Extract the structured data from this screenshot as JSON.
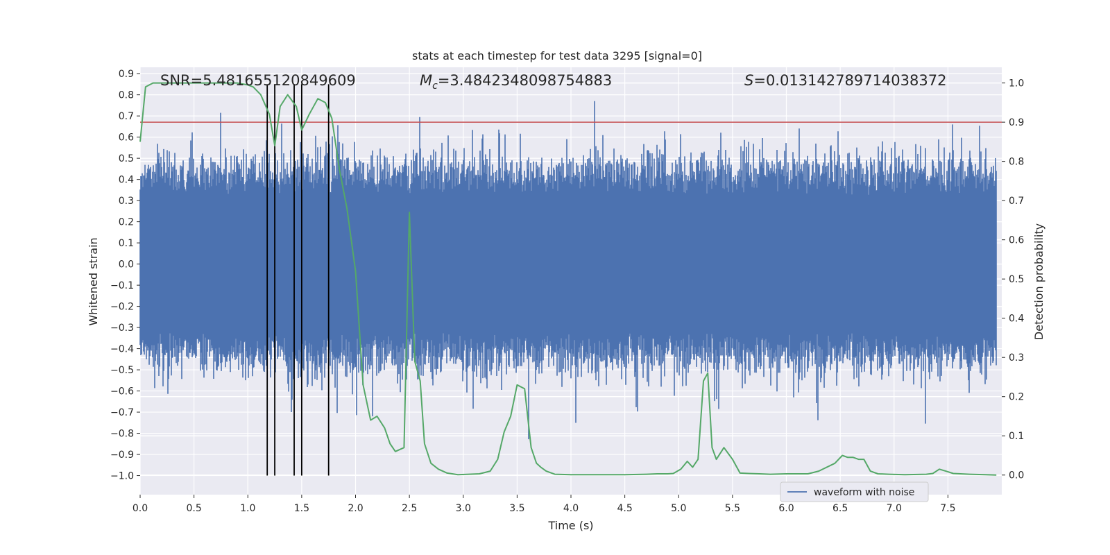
{
  "chart_data": {
    "type": "line",
    "title": "stats at each timestep for test data 3295 [signal=0]",
    "xlabel": "Time (s)",
    "ylabel_left": "Whitened strain",
    "ylabel_right": "Detection probability",
    "xlim": [
      0.0,
      8.0
    ],
    "ylim_left": [
      -1.09,
      0.93
    ],
    "ylim_right": [
      -0.05,
      1.04
    ],
    "x_ticks": [
      0.0,
      0.5,
      1.0,
      1.5,
      2.0,
      2.5,
      3.0,
      3.5,
      4.0,
      4.5,
      5.0,
      5.5,
      6.0,
      6.5,
      7.0,
      7.5
    ],
    "x_tick_labels": [
      "0.0",
      "0.5",
      "1.0",
      "1.5",
      "2.0",
      "2.5",
      "3.0",
      "3.5",
      "4.0",
      "4.5",
      "5.0",
      "5.5",
      "6.0",
      "6.5",
      "7.0",
      "7.5"
    ],
    "y_left_ticks": [
      -1.0,
      -0.9,
      -0.8,
      -0.7,
      -0.6,
      -0.5,
      -0.4,
      -0.3,
      -0.2,
      -0.1,
      0.0,
      0.1,
      0.2,
      0.3,
      0.4,
      0.5,
      0.6,
      0.7,
      0.8,
      0.9
    ],
    "y_left_tick_labels": [
      "−1.0",
      "−0.9",
      "−0.8",
      "−0.7",
      "−0.6",
      "−0.5",
      "−0.4",
      "−0.3",
      "−0.2",
      "−0.1",
      "0.0",
      "0.1",
      "0.2",
      "0.3",
      "0.4",
      "0.5",
      "0.6",
      "0.7",
      "0.8",
      "0.9"
    ],
    "y_right_ticks": [
      0.0,
      0.1,
      0.2,
      0.3,
      0.4,
      0.5,
      0.6,
      0.7,
      0.8,
      0.9,
      1.0
    ],
    "y_right_tick_labels": [
      "0.0",
      "0.1",
      "0.2",
      "0.3",
      "0.4",
      "0.5",
      "0.6",
      "0.7",
      "0.8",
      "0.9",
      "1.0"
    ],
    "grid": true,
    "annotations": {
      "snr": "SNR=5.481655120849609",
      "mc_symbol": "M",
      "mc_sub": "c",
      "mc_value": "=3.4842348098754883",
      "s_symbol": "S",
      "s_value": "=0.013142789714038372"
    },
    "threshold": 0.9,
    "vertical_lines_x": [
      1.18,
      1.25,
      1.43,
      1.5,
      1.75
    ],
    "vertical_lines_range": [
      -1.0,
      0.85
    ],
    "waveform": {
      "name": "waveform with noise",
      "description_range": [
        0.0,
        7.95
      ],
      "typical_amplitude": 0.38,
      "peak_min": -0.98,
      "peak_max": 0.85
    },
    "probability": {
      "x": [
        0.0,
        0.05,
        0.12,
        0.2,
        0.3,
        0.5,
        0.7,
        0.9,
        1.0,
        1.05,
        1.12,
        1.2,
        1.25,
        1.3,
        1.37,
        1.45,
        1.5,
        1.57,
        1.65,
        1.72,
        1.78,
        1.85,
        1.92,
        2.0,
        2.07,
        2.14,
        2.2,
        2.27,
        2.32,
        2.37,
        2.45,
        2.5,
        2.55,
        2.6,
        2.64,
        2.7,
        2.77,
        2.85,
        2.95,
        3.05,
        3.15,
        3.25,
        3.32,
        3.38,
        3.44,
        3.5,
        3.57,
        3.63,
        3.68,
        3.72,
        3.77,
        3.85,
        4.0,
        4.2,
        4.5,
        4.7,
        4.8,
        4.9,
        4.95,
        5.02,
        5.08,
        5.13,
        5.18,
        5.23,
        5.27,
        5.31,
        5.35,
        5.42,
        5.5,
        5.57,
        5.65,
        5.75,
        5.85,
        6.0,
        6.2,
        6.3,
        6.45,
        6.52,
        6.57,
        6.62,
        6.67,
        6.72,
        6.78,
        6.85,
        6.95,
        7.1,
        7.3,
        7.36,
        7.42,
        7.48,
        7.55,
        7.7,
        7.85,
        7.95
      ],
      "y": [
        0.85,
        0.99,
        1.0,
        1.0,
        1.0,
        1.0,
        1.0,
        1.0,
        0.995,
        0.99,
        0.97,
        0.92,
        0.84,
        0.94,
        0.97,
        0.94,
        0.88,
        0.92,
        0.96,
        0.95,
        0.91,
        0.78,
        0.68,
        0.52,
        0.23,
        0.14,
        0.15,
        0.12,
        0.08,
        0.06,
        0.07,
        0.67,
        0.29,
        0.24,
        0.08,
        0.03,
        0.015,
        0.005,
        0.001,
        0.002,
        0.003,
        0.01,
        0.04,
        0.11,
        0.15,
        0.23,
        0.22,
        0.07,
        0.03,
        0.02,
        0.01,
        0.002,
        0.001,
        0.001,
        0.001,
        0.002,
        0.003,
        0.003,
        0.004,
        0.015,
        0.035,
        0.02,
        0.04,
        0.24,
        0.26,
        0.07,
        0.04,
        0.07,
        0.04,
        0.005,
        0.004,
        0.003,
        0.002,
        0.003,
        0.003,
        0.01,
        0.03,
        0.05,
        0.045,
        0.045,
        0.04,
        0.04,
        0.01,
        0.003,
        0.002,
        0.001,
        0.002,
        0.004,
        0.015,
        0.01,
        0.004,
        0.002,
        0.001,
        0.0
      ]
    },
    "legend": {
      "placement": "lower-right",
      "entries": [
        "waveform with noise"
      ]
    },
    "colors": {
      "background": "#eaeaf2",
      "grid": "#ffffff",
      "waveform": "#4c72b0",
      "probability": "#55a868",
      "threshold": "#c44e52",
      "vlines": "#000000",
      "text": "#262626"
    }
  }
}
